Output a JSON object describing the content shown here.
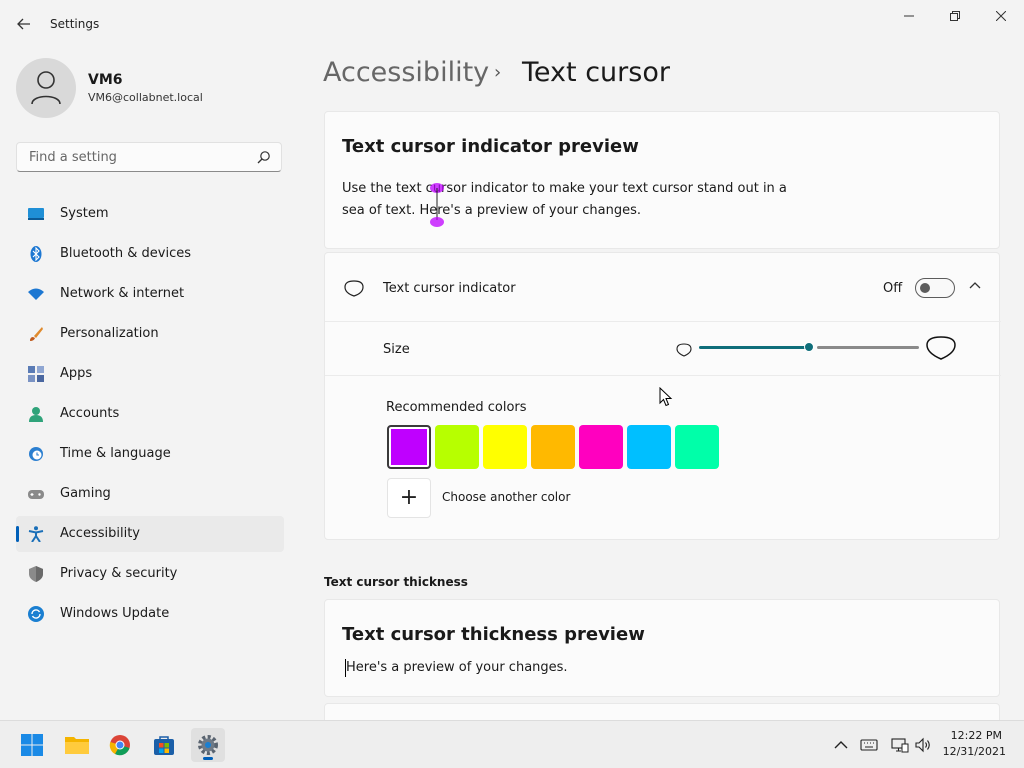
{
  "window": {
    "title": "Settings",
    "back_icon": "arrow-left-icon",
    "minimize_glyph": "—",
    "maximize_glyph": "❐",
    "close_glyph": "✕"
  },
  "profile": {
    "name": "VM6",
    "email": "VM6@collabnet.local"
  },
  "search": {
    "placeholder": "Find a setting"
  },
  "sidebar": {
    "items": [
      {
        "label": "System",
        "icon": "monitor-icon",
        "color": "#1f8fd6"
      },
      {
        "label": "Bluetooth & devices",
        "icon": "bluetooth-icon",
        "color": "#1c77d2"
      },
      {
        "label": "Network & internet",
        "icon": "wifi-icon",
        "color": "#1c77d2"
      },
      {
        "label": "Personalization",
        "icon": "brush-icon",
        "color": "#e08a2c"
      },
      {
        "label": "Apps",
        "icon": "apps-icon",
        "color": "#5a7bb5"
      },
      {
        "label": "Accounts",
        "icon": "person-icon",
        "color": "#2fa37a"
      },
      {
        "label": "Time & language",
        "icon": "globe-clock-icon",
        "color": "#2b7fd0"
      },
      {
        "label": "Gaming",
        "icon": "gamepad-icon",
        "color": "#777777"
      },
      {
        "label": "Accessibility",
        "icon": "accessibility-icon",
        "color": "#1a6fb8",
        "selected": true
      },
      {
        "label": "Privacy & security",
        "icon": "shield-icon",
        "color": "#8a8a8a"
      },
      {
        "label": "Windows Update",
        "icon": "update-icon",
        "color": "#1a7fd1"
      }
    ]
  },
  "header": {
    "parent": "Accessibility",
    "separator": "›",
    "current": "Text cursor"
  },
  "preview": {
    "title": "Text cursor indicator preview",
    "description": "Use the text cursor indicator to make your text cursor stand out in a sea of text. Here's a preview of your changes."
  },
  "indicator": {
    "label": "Text cursor indicator",
    "state": "Off",
    "enabled": false,
    "chevron": "⌃"
  },
  "size": {
    "label": "Size",
    "value_fraction": 0.5
  },
  "colors": {
    "label": "Recommended colors",
    "swatches": [
      "#bf00ff",
      "#b7ff00",
      "#ffff00",
      "#ffb900",
      "#ff00bf",
      "#00bfff",
      "#00ffa9"
    ],
    "selected_index": 0,
    "add_glyph": "+",
    "add_label": "Choose another color"
  },
  "thickness": {
    "heading": "Text cursor thickness",
    "title": "Text cursor thickness preview",
    "description": "Here's a preview of your changes."
  },
  "taskbar": {
    "apps": [
      "start-icon",
      "file-explorer-icon",
      "chrome-icon",
      "store-icon",
      "settings-icon"
    ],
    "active_app": "settings-icon",
    "tray": [
      "chevron-up-icon",
      "keyboard-icon",
      "network-icon",
      "volume-icon"
    ],
    "time": "12:22 PM",
    "date": "12/31/2021"
  }
}
